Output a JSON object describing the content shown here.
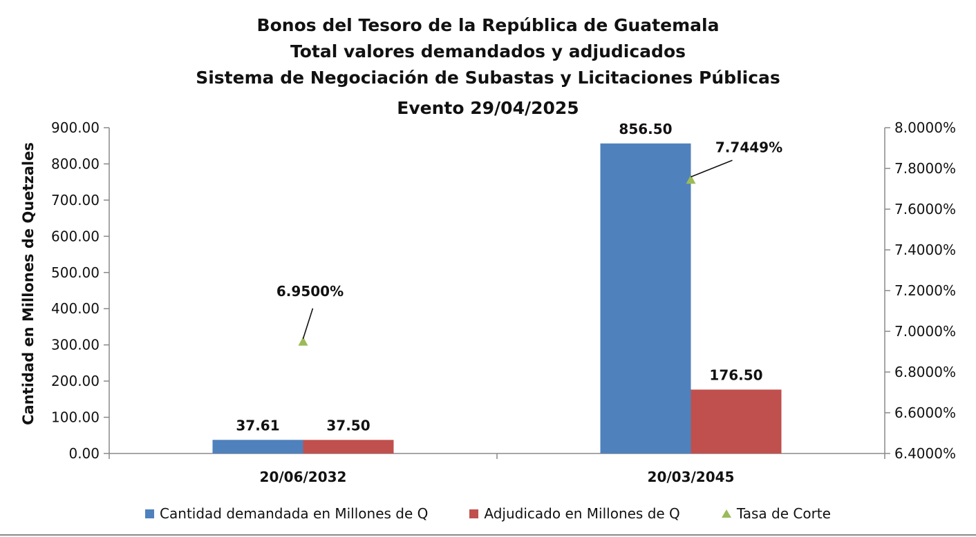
{
  "chart_data": {
    "type": "bar",
    "title": [
      "Bonos del Tesoro de la República de Guatemala",
      "Total valores demandados y adjudicados",
      "Sistema de Negociación de Subastas y Licitaciones Públicas",
      "Evento 29/04/2025"
    ],
    "categories": [
      "20/06/2032",
      "20/03/2045"
    ],
    "ylabel": "Cantidad en Millones de Quetzales",
    "ylim": [
      0,
      900
    ],
    "yticks": [
      "0.00",
      "100.00",
      "200.00",
      "300.00",
      "400.00",
      "500.00",
      "600.00",
      "700.00",
      "800.00",
      "900.00"
    ],
    "y2lim": [
      6.4,
      8.0
    ],
    "y2ticks": [
      "6.4000%",
      "6.6000%",
      "6.8000%",
      "7.0000%",
      "7.2000%",
      "7.4000%",
      "7.6000%",
      "7.8000%",
      "8.0000%"
    ],
    "series": [
      {
        "name": "Cantidad demandada en Millones de Q",
        "type": "bar",
        "axis": "left",
        "color": "#4f81bd",
        "values": [
          37.61,
          856.5
        ],
        "labels": [
          "37.61",
          "856.50"
        ]
      },
      {
        "name": "Adjudicado en Millones de Q",
        "type": "bar",
        "axis": "left",
        "color": "#c0504d",
        "values": [
          37.5,
          176.5
        ],
        "labels": [
          "37.50",
          "176.50"
        ]
      },
      {
        "name": "Tasa de Corte",
        "type": "scatter",
        "marker": "triangle",
        "axis": "right",
        "color": "#9bbb59",
        "values": [
          6.95,
          7.7449
        ],
        "labels": [
          "6.9500%",
          "7.7449%"
        ]
      }
    ],
    "legend": "bottom",
    "grid": false
  }
}
